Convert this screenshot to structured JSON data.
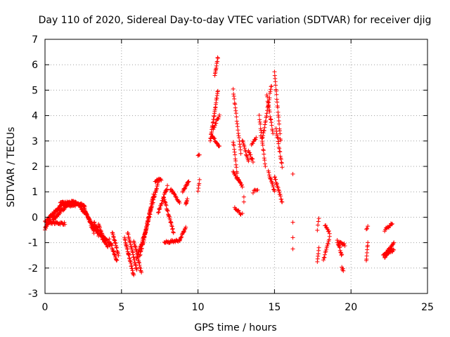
{
  "chart_data": {
    "type": "scatter",
    "title": "Day 110 of 2020, Sidereal Day-to-day VTEC variation (SDTVAR) for receiver djig",
    "xlabel": "GPS time / hours",
    "ylabel": "SDTVAR / TECUs",
    "xlim": [
      0,
      25
    ],
    "ylim": [
      -3,
      7
    ],
    "xticks": [
      0,
      5,
      10,
      15,
      20,
      25
    ],
    "yticks": [
      -3,
      -2,
      -1,
      0,
      1,
      2,
      3,
      4,
      5,
      6,
      7
    ],
    "grid": true,
    "marker": "+",
    "marker_color": "#ff0000",
    "tracks": [
      {
        "x0": 0.0,
        "x1": 0.35,
        "y0": -0.45,
        "y1": -0.1,
        "n": 20
      },
      {
        "x0": 0.0,
        "x1": 0.5,
        "y0": -0.2,
        "y1": 0.1,
        "n": 16
      },
      {
        "x0": 0.3,
        "x1": 1.2,
        "y0": 0.0,
        "y1": 0.55,
        "n": 40
      },
      {
        "x0": 0.5,
        "x1": 1.4,
        "y0": -0.1,
        "y1": 0.45,
        "n": 35
      },
      {
        "x0": 0.2,
        "x1": 1.3,
        "y0": -0.2,
        "y1": -0.25,
        "n": 30
      },
      {
        "x0": 1.0,
        "x1": 2.0,
        "y0": 0.55,
        "y1": 0.6,
        "n": 35
      },
      {
        "x0": 1.2,
        "x1": 2.4,
        "y0": 0.45,
        "y1": 0.5,
        "n": 35
      },
      {
        "x0": 1.6,
        "x1": 2.6,
        "y0": 0.6,
        "y1": 0.45,
        "n": 30
      },
      {
        "x0": 2.2,
        "x1": 2.7,
        "y0": 0.5,
        "y1": 0.1,
        "n": 18
      },
      {
        "x0": 2.5,
        "x1": 3.2,
        "y0": 0.45,
        "y1": -0.6,
        "n": 30
      },
      {
        "x0": 2.8,
        "x1": 3.5,
        "y0": 0.0,
        "y1": -0.7,
        "n": 25
      },
      {
        "x0": 3.2,
        "x1": 3.9,
        "y0": -0.2,
        "y1": -1.0,
        "n": 25
      },
      {
        "x0": 3.5,
        "x1": 4.1,
        "y0": -0.3,
        "y1": -1.2,
        "n": 22
      },
      {
        "x0": 3.7,
        "x1": 4.3,
        "y0": -0.7,
        "y1": -1.1,
        "n": 15
      },
      {
        "x0": 4.2,
        "x1": 4.7,
        "y0": -0.9,
        "y1": -1.7,
        "n": 20
      },
      {
        "x0": 4.4,
        "x1": 4.8,
        "y0": -0.6,
        "y1": -1.5,
        "n": 18
      },
      {
        "x0": 5.2,
        "x1": 5.8,
        "y0": -0.8,
        "y1": -2.3,
        "n": 30
      },
      {
        "x0": 5.4,
        "x1": 6.0,
        "y0": -0.6,
        "y1": -2.1,
        "n": 28
      },
      {
        "x0": 5.8,
        "x1": 6.3,
        "y0": -0.9,
        "y1": -2.2,
        "n": 22
      },
      {
        "x0": 6.0,
        "x1": 6.6,
        "y0": -1.6,
        "y1": -0.5,
        "n": 25
      },
      {
        "x0": 6.2,
        "x1": 6.9,
        "y0": -1.5,
        "y1": 0.2,
        "n": 28
      },
      {
        "x0": 6.4,
        "x1": 7.1,
        "y0": -1.0,
        "y1": 0.9,
        "n": 30
      },
      {
        "x0": 6.7,
        "x1": 7.4,
        "y0": -0.2,
        "y1": 1.4,
        "n": 30
      },
      {
        "x0": 7.2,
        "x1": 7.6,
        "y0": 1.4,
        "y1": 1.5,
        "n": 12
      },
      {
        "x0": 7.4,
        "x1": 8.0,
        "y0": 0.2,
        "y1": 1.2,
        "n": 22
      },
      {
        "x0": 7.8,
        "x1": 8.4,
        "y0": 0.7,
        "y1": -0.6,
        "n": 25
      },
      {
        "x0": 7.8,
        "x1": 8.8,
        "y0": -1.0,
        "y1": -0.9,
        "n": 25
      },
      {
        "x0": 8.2,
        "x1": 8.8,
        "y0": 1.1,
        "y1": 0.6,
        "n": 18
      },
      {
        "x0": 8.8,
        "x1": 9.2,
        "y0": -0.9,
        "y1": -0.4,
        "n": 14
      },
      {
        "x0": 9.0,
        "x1": 9.4,
        "y0": 1.0,
        "y1": 1.4,
        "n": 14
      },
      {
        "x0": 9.2,
        "x1": 9.3,
        "y0": 0.5,
        "y1": 0.7,
        "n": 6
      },
      {
        "x0": 10.0,
        "x1": 10.1,
        "y0": 1.0,
        "y1": 1.5,
        "n": 5
      },
      {
        "x0": 10.0,
        "x1": 10.1,
        "y0": 2.4,
        "y1": 2.5,
        "n": 3
      },
      {
        "x0": 10.8,
        "x1": 11.3,
        "y0": 3.0,
        "y1": 5.0,
        "n": 30
      },
      {
        "x0": 11.0,
        "x1": 11.4,
        "y0": 3.5,
        "y1": 4.0,
        "n": 12
      },
      {
        "x0": 11.1,
        "x1": 11.3,
        "y0": 5.6,
        "y1": 6.3,
        "n": 12
      },
      {
        "x0": 10.9,
        "x1": 11.4,
        "y0": 3.2,
        "y1": 2.8,
        "n": 15
      },
      {
        "x0": 12.3,
        "x1": 12.8,
        "y0": 5.0,
        "y1": 2.5,
        "n": 22
      },
      {
        "x0": 12.3,
        "x1": 12.6,
        "y0": 3.0,
        "y1": 1.5,
        "n": 14
      },
      {
        "x0": 12.3,
        "x1": 12.9,
        "y0": 1.8,
        "y1": 1.2,
        "n": 18
      },
      {
        "x0": 12.4,
        "x1": 12.8,
        "y0": 0.4,
        "y1": 0.15,
        "n": 10
      },
      {
        "x0": 12.9,
        "x1": 13.3,
        "y0": 3.0,
        "y1": 2.2,
        "n": 14
      },
      {
        "x0": 13.3,
        "x1": 13.6,
        "y0": 2.6,
        "y1": 2.2,
        "n": 10
      },
      {
        "x0": 13.5,
        "x1": 13.8,
        "y0": 2.9,
        "y1": 3.1,
        "n": 8
      },
      {
        "x0": 13.6,
        "x1": 13.9,
        "y0": 1.0,
        "y1": 1.1,
        "n": 6
      },
      {
        "x0": 14.0,
        "x1": 14.4,
        "y0": 4.0,
        "y1": 2.0,
        "n": 18
      },
      {
        "x0": 14.2,
        "x1": 14.8,
        "y0": 3.0,
        "y1": 5.2,
        "n": 25
      },
      {
        "x0": 14.5,
        "x1": 14.9,
        "y0": 4.8,
        "y1": 3.3,
        "n": 16
      },
      {
        "x0": 14.6,
        "x1": 15.0,
        "y0": 1.8,
        "y1": 1.0,
        "n": 15
      },
      {
        "x0": 15.0,
        "x1": 15.4,
        "y0": 5.7,
        "y1": 3.0,
        "n": 22
      },
      {
        "x0": 15.1,
        "x1": 15.5,
        "y0": 3.5,
        "y1": 2.0,
        "n": 18
      },
      {
        "x0": 15.0,
        "x1": 15.5,
        "y0": 1.6,
        "y1": 0.6,
        "n": 20
      },
      {
        "x0": 17.8,
        "x1": 17.9,
        "y0": -0.5,
        "y1": 0.0,
        "n": 4
      },
      {
        "x0": 17.8,
        "x1": 17.9,
        "y0": -1.8,
        "y1": -1.2,
        "n": 6
      },
      {
        "x0": 18.2,
        "x1": 18.6,
        "y0": -1.7,
        "y1": -0.8,
        "n": 14
      },
      {
        "x0": 18.3,
        "x1": 18.6,
        "y0": -0.3,
        "y1": -0.6,
        "n": 8
      },
      {
        "x0": 19.1,
        "x1": 19.4,
        "y0": -0.9,
        "y1": -1.5,
        "n": 12
      },
      {
        "x0": 19.2,
        "x1": 19.6,
        "y0": -1.0,
        "y1": -1.1,
        "n": 10
      },
      {
        "x0": 19.4,
        "x1": 19.5,
        "y0": -2.0,
        "y1": -2.1,
        "n": 4
      },
      {
        "x0": 21.0,
        "x1": 21.1,
        "y0": -1.7,
        "y1": -1.0,
        "n": 8
      },
      {
        "x0": 21.0,
        "x1": 21.1,
        "y0": -0.5,
        "y1": -0.4,
        "n": 3
      },
      {
        "x0": 22.1,
        "x1": 22.6,
        "y0": -1.5,
        "y1": -1.2,
        "n": 16
      },
      {
        "x0": 22.2,
        "x1": 22.8,
        "y0": -1.6,
        "y1": -1.0,
        "n": 18
      },
      {
        "x0": 22.2,
        "x1": 22.7,
        "y0": -0.5,
        "y1": -0.25,
        "n": 12
      },
      {
        "x0": 22.4,
        "x1": 22.8,
        "y0": -1.4,
        "y1": -1.3,
        "n": 10
      }
    ],
    "points": [
      [
        16.2,
        1.7
      ],
      [
        16.2,
        -0.2
      ],
      [
        16.2,
        -0.8
      ],
      [
        16.2,
        -1.25
      ],
      [
        13.0,
        0.8
      ],
      [
        13.0,
        0.6
      ],
      [
        12.9,
        0.15
      ],
      [
        14.1,
        3.2
      ],
      [
        14.3,
        3.4
      ],
      [
        9.3,
        1.3
      ]
    ]
  }
}
